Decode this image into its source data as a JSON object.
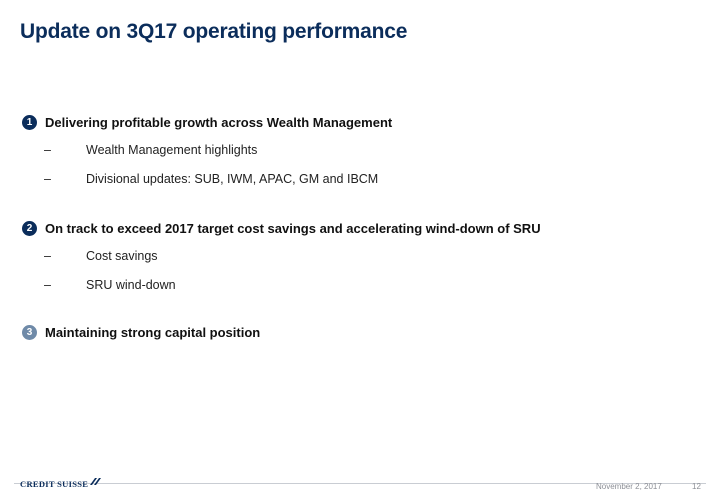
{
  "title": "Update on 3Q17 operating performance",
  "sections": [
    {
      "number": "1",
      "title": "Delivering profitable growth across Wealth Management",
      "items": [
        "Wealth Management highlights",
        "Divisional updates: SUB, IWM, APAC, GM and IBCM"
      ]
    },
    {
      "number": "2",
      "title": "On track to exceed 2017 target cost savings and accelerating wind-down of SRU",
      "items": [
        "Cost savings",
        "SRU wind-down"
      ]
    },
    {
      "number": "3",
      "title": "Maintaining strong capital position",
      "items": []
    }
  ],
  "bullet_dash": "–",
  "footer": {
    "logo_text": "CREDIT SUISSE",
    "date": "November 2, 2017",
    "page_number": "12"
  },
  "colors": {
    "primary_navy": "#0b2d5b",
    "muted_blue": "#6f8aa8"
  }
}
